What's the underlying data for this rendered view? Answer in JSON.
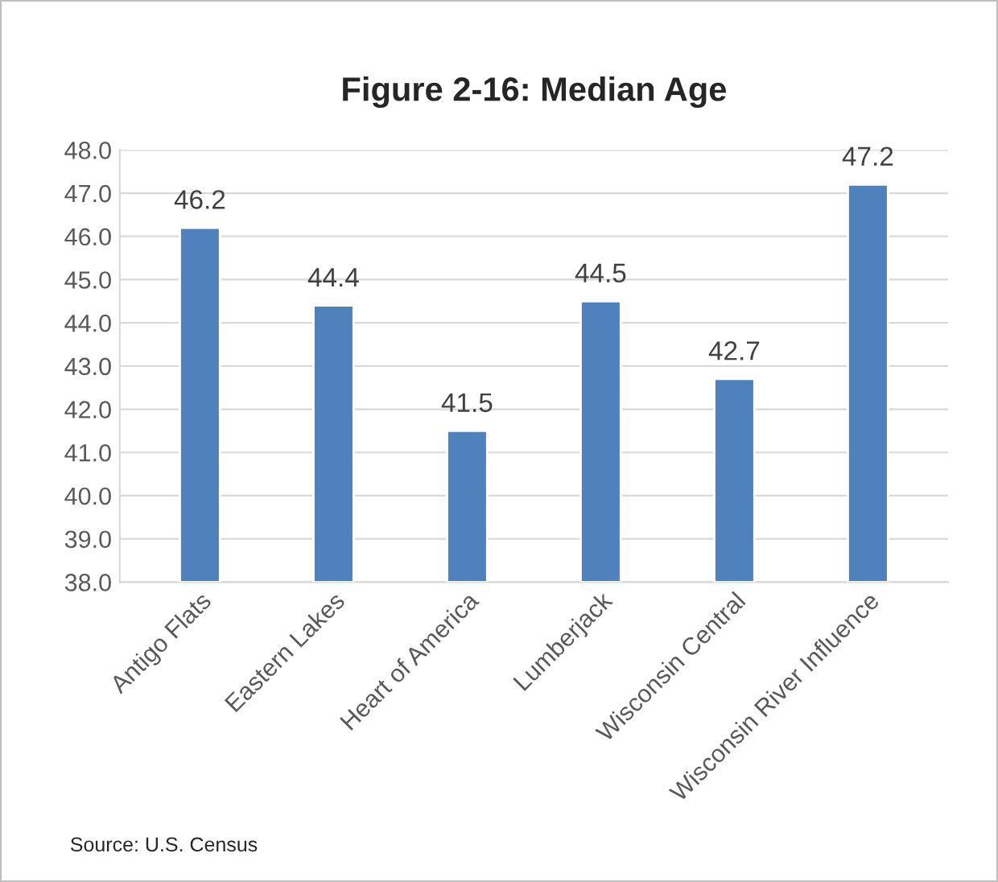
{
  "chart_data": {
    "type": "bar",
    "title": "Figure 2-16: Median Age",
    "categories": [
      "Antigo Flats",
      "Eastern Lakes",
      "Heart of America",
      "Lumberjack",
      "Wisconsin Central",
      "Wisconsin River Influence"
    ],
    "values": [
      46.2,
      44.4,
      41.5,
      44.5,
      42.7,
      47.2
    ],
    "color": "#4f81bd",
    "ylim": [
      38,
      48
    ],
    "yticks": [
      {
        "value": 38,
        "label": "38.0"
      },
      {
        "value": 39,
        "label": "39.0"
      },
      {
        "value": 40,
        "label": "40.0"
      },
      {
        "value": 41,
        "label": "41.0"
      },
      {
        "value": 42,
        "label": "42.0"
      },
      {
        "value": 43,
        "label": "43.0"
      },
      {
        "value": 44,
        "label": "44.0"
      },
      {
        "value": 45,
        "label": "45.0"
      },
      {
        "value": 46,
        "label": "46.0"
      },
      {
        "value": 47,
        "label": "47.0"
      },
      {
        "value": 48,
        "label": "48.0"
      }
    ],
    "grid": "y",
    "data_labels": true,
    "annotations": [
      "Source: U.S. Census"
    ]
  }
}
